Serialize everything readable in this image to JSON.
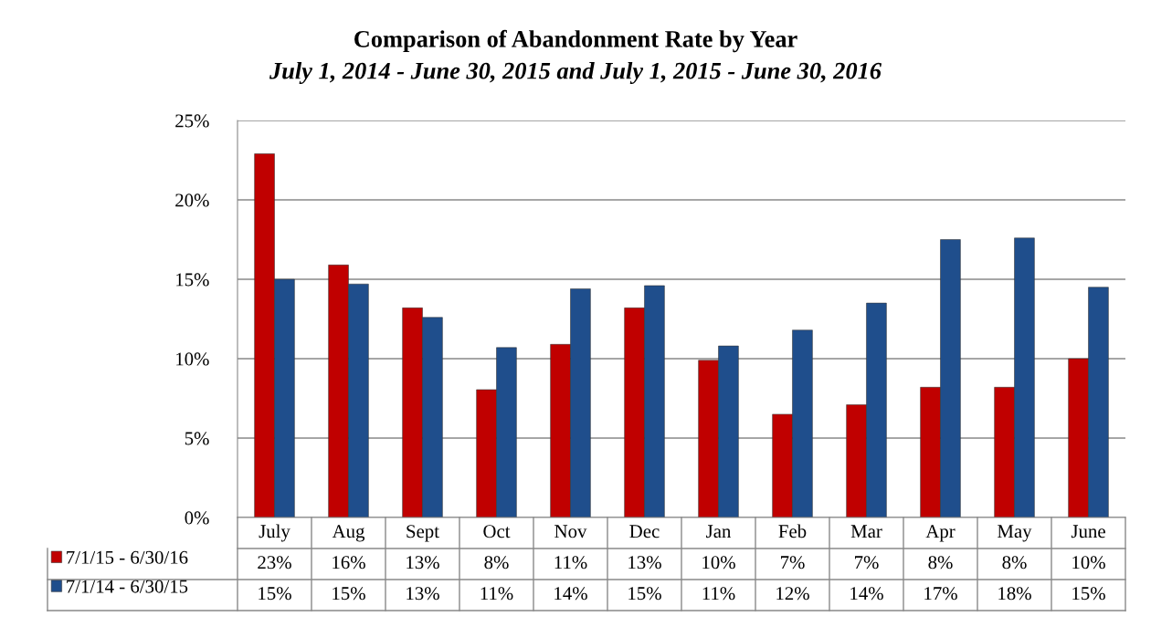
{
  "chart_data": {
    "type": "bar",
    "title": "Comparison of Abandonment Rate by Year",
    "subtitle": "July 1, 2014 - June 30, 2015 and July 1, 2015 - June 30, 2016",
    "categories": [
      "July",
      "Aug",
      "Sept",
      "Oct",
      "Nov",
      "Dec",
      "Jan",
      "Feb",
      "Mar",
      "Apr",
      "May",
      "June"
    ],
    "series": [
      {
        "name": "7/1/15 - 6/30/16",
        "color": "#c00000",
        "values": [
          22.9,
          15.9,
          13.2,
          8.05,
          10.9,
          13.2,
          9.9,
          6.5,
          7.1,
          8.2,
          8.2,
          10.0
        ],
        "value_labels": [
          "23%",
          "16%",
          "13%",
          "8%",
          "11%",
          "13%",
          "10%",
          "7%",
          "7%",
          "8%",
          "8%",
          "10%"
        ]
      },
      {
        "name": "7/1/14 - 6/30/15",
        "color": "#1f4e8c",
        "values": [
          15.0,
          14.7,
          12.6,
          10.7,
          14.4,
          14.6,
          10.8,
          11.8,
          13.5,
          17.5,
          17.6,
          14.5
        ],
        "value_labels": [
          "15%",
          "15%",
          "13%",
          "11%",
          "14%",
          "15%",
          "11%",
          "12%",
          "14%",
          "17%",
          "18%",
          "15%"
        ]
      }
    ],
    "ylim": [
      0,
      25
    ],
    "yticks": [
      {
        "value": 0,
        "label": "0%"
      },
      {
        "value": 5,
        "label": "5%"
      },
      {
        "value": 10,
        "label": "10%"
      },
      {
        "value": 15,
        "label": "15%"
      },
      {
        "value": 20,
        "label": "20%"
      },
      {
        "value": 25,
        "label": "25%"
      }
    ],
    "grid": "y",
    "legend": "bottom",
    "tick_labels": "y"
  }
}
